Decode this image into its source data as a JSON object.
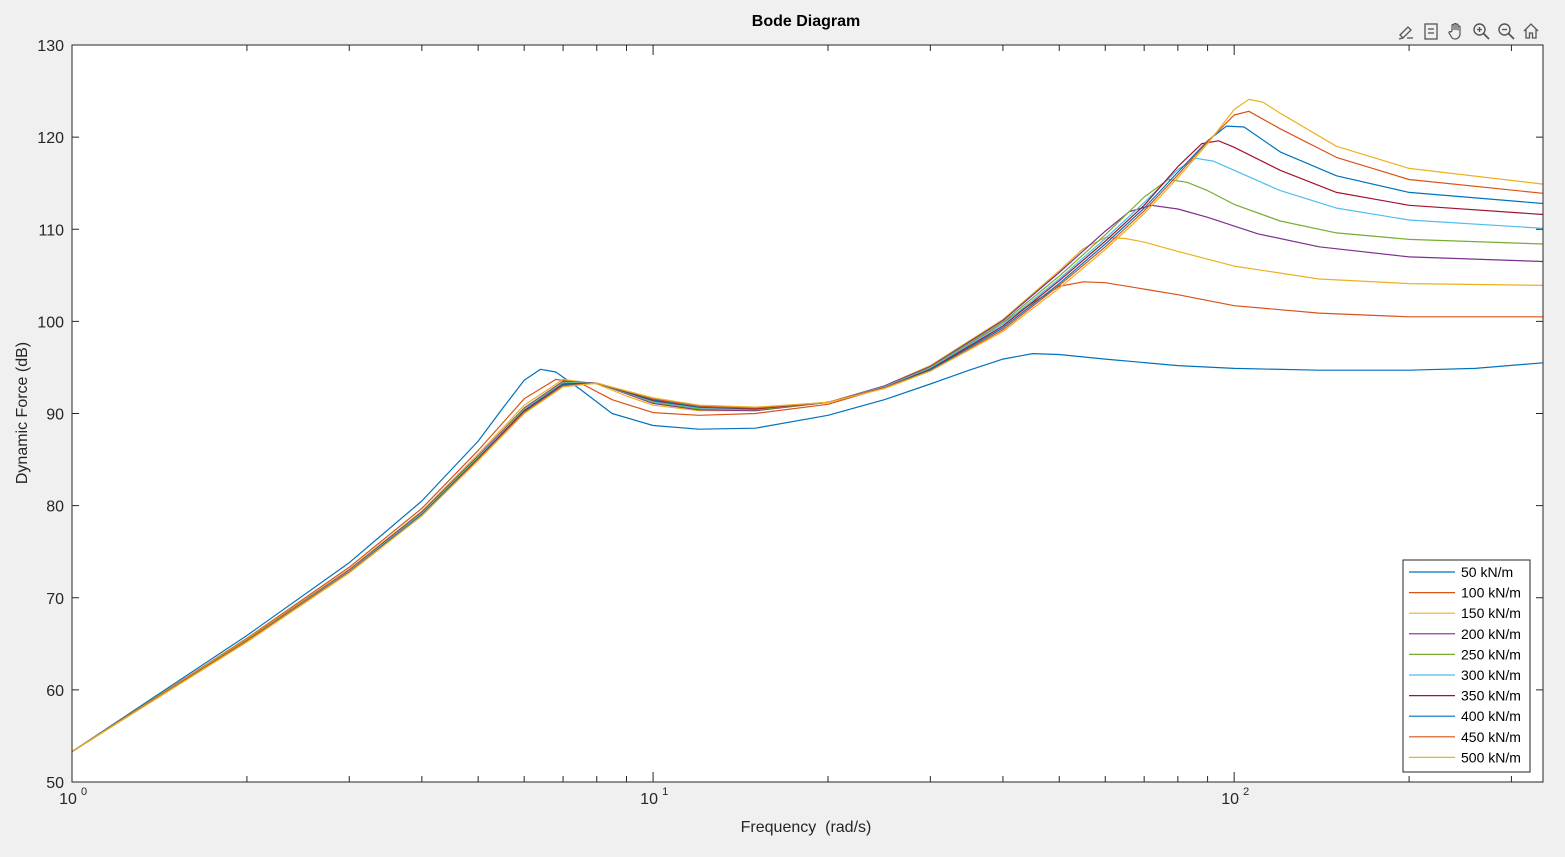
{
  "toolbar": {
    "icons": [
      "brush-icon",
      "legend-icon",
      "pan-hand-icon",
      "zoom-in-icon",
      "zoom-out-icon",
      "home-icon"
    ]
  },
  "chart_data": {
    "type": "line",
    "title": "Bode Diagram",
    "xlabel": "Frequency  (rad/s)",
    "ylabel": "Dynamic Force (dB)",
    "xscale": "log",
    "xlim": [
      1,
      340
    ],
    "ylim": [
      50,
      130
    ],
    "yticks": [
      50,
      60,
      70,
      80,
      90,
      100,
      110,
      120,
      130
    ],
    "xticks_major": [
      {
        "value": 1,
        "base": "10",
        "exp": "0"
      },
      {
        "value": 10,
        "base": "10",
        "exp": "1"
      },
      {
        "value": 100,
        "base": "10",
        "exp": "2"
      }
    ],
    "grid": false,
    "legend_position": "bottom-right",
    "series": [
      {
        "name": "50 kN/m",
        "color": "#0072BD",
        "x": [
          1,
          2,
          3,
          4,
          5,
          5.5,
          6,
          6.4,
          6.8,
          7.5,
          8.5,
          10,
          12,
          15,
          20,
          25,
          30,
          35,
          40,
          45,
          50,
          60,
          80,
          100,
          140,
          200,
          260,
          340
        ],
        "y": [
          53.3,
          65.9,
          73.8,
          80.5,
          87.0,
          90.5,
          93.6,
          94.8,
          94.5,
          92.6,
          90.0,
          88.7,
          88.3,
          88.4,
          89.8,
          91.5,
          93.2,
          94.7,
          95.9,
          96.5,
          96.4,
          95.9,
          95.2,
          94.9,
          94.7,
          94.7,
          94.9,
          95.5
        ]
      },
      {
        "name": "100 kN/m",
        "color": "#D95319",
        "x": [
          1,
          2,
          3,
          4,
          5,
          6,
          6.8,
          7.5,
          8.5,
          10,
          12,
          15,
          20,
          25,
          30,
          35,
          40,
          45,
          50,
          55,
          60,
          70,
          80,
          100,
          140,
          200,
          340
        ],
        "y": [
          53.3,
          65.6,
          73.3,
          79.7,
          86.0,
          91.6,
          93.7,
          93.3,
          91.5,
          90.1,
          89.8,
          90.0,
          91.0,
          92.8,
          95.0,
          97.5,
          99.9,
          102.0,
          103.8,
          104.3,
          104.2,
          103.5,
          102.9,
          101.7,
          100.9,
          100.5,
          100.5
        ]
      },
      {
        "name": "150 kN/m",
        "color": "#EDB120",
        "x": [
          1,
          2,
          3,
          4,
          5,
          6,
          7,
          8,
          9,
          10,
          12,
          15,
          20,
          25,
          30,
          40,
          50,
          55,
          60,
          65,
          70,
          80,
          100,
          140,
          200,
          340
        ],
        "y": [
          53.3,
          65.5,
          73.1,
          79.4,
          85.6,
          90.9,
          93.7,
          93.2,
          91.9,
          90.9,
          90.3,
          90.3,
          91.2,
          93.0,
          95.2,
          100.2,
          105.5,
          107.9,
          109.1,
          109.0,
          108.6,
          107.6,
          106.0,
          104.6,
          104.1,
          103.9
        ]
      },
      {
        "name": "200 kN/m",
        "color": "#7E2F8E",
        "x": [
          1,
          2,
          3,
          4,
          5,
          6,
          7,
          8,
          10,
          12,
          15,
          20,
          25,
          30,
          40,
          50,
          60,
          66,
          72,
          80,
          90,
          110,
          140,
          200,
          340
        ],
        "y": [
          53.3,
          65.4,
          73.0,
          79.3,
          85.4,
          90.6,
          93.5,
          93.3,
          91.1,
          90.4,
          90.3,
          91.2,
          93.0,
          95.1,
          100.1,
          105.3,
          109.8,
          111.9,
          112.6,
          112.2,
          111.3,
          109.5,
          108.1,
          107.0,
          106.5
        ]
      },
      {
        "name": "250 kN/m",
        "color": "#77AC30",
        "x": [
          1,
          2,
          3,
          4,
          5,
          6,
          7,
          8,
          10,
          12,
          15,
          20,
          25,
          30,
          40,
          50,
          60,
          70,
          77,
          83,
          90,
          100,
          120,
          150,
          200,
          340
        ],
        "y": [
          53.3,
          65.4,
          72.9,
          79.2,
          85.3,
          90.5,
          93.4,
          93.3,
          91.2,
          90.5,
          90.4,
          91.2,
          92.9,
          95.0,
          99.9,
          104.9,
          109.4,
          113.5,
          115.4,
          115.1,
          114.2,
          112.7,
          110.9,
          109.6,
          108.9,
          108.4
        ]
      },
      {
        "name": "300 kN/m",
        "color": "#4DBEEE",
        "x": [
          1,
          2,
          3,
          4,
          5,
          6,
          7,
          8,
          10,
          12,
          15,
          20,
          25,
          30,
          40,
          50,
          60,
          70,
          80,
          86,
          92,
          100,
          120,
          150,
          200,
          340
        ],
        "y": [
          53.3,
          65.3,
          72.9,
          79.1,
          85.2,
          90.4,
          93.3,
          93.3,
          91.3,
          90.6,
          90.5,
          91.2,
          92.9,
          94.9,
          99.7,
          104.6,
          109.0,
          112.9,
          116.5,
          117.7,
          117.4,
          116.4,
          114.2,
          112.3,
          111.0,
          110.1
        ]
      },
      {
        "name": "350 kN/m",
        "color": "#A2142F",
        "x": [
          1,
          2,
          3,
          4,
          5,
          6,
          7,
          8,
          10,
          12,
          15,
          20,
          25,
          30,
          40,
          50,
          60,
          70,
          80,
          88,
          94,
          100,
          120,
          150,
          200,
          340
        ],
        "y": [
          53.3,
          65.3,
          72.8,
          79.0,
          85.1,
          90.3,
          93.2,
          93.3,
          91.4,
          90.7,
          90.5,
          91.2,
          92.8,
          94.8,
          99.5,
          104.4,
          108.7,
          112.6,
          116.8,
          119.3,
          119.6,
          118.9,
          116.4,
          114.0,
          112.6,
          111.6
        ]
      },
      {
        "name": "400 kN/m",
        "color": "#0072BD",
        "x": [
          1,
          2,
          3,
          4,
          5,
          6,
          7,
          8,
          10,
          12,
          15,
          20,
          25,
          30,
          40,
          50,
          60,
          70,
          80,
          90,
          97,
          104,
          120,
          150,
          200,
          340
        ],
        "y": [
          53.3,
          65.3,
          72.8,
          79.0,
          85.0,
          90.2,
          93.1,
          93.3,
          91.5,
          90.7,
          90.6,
          91.2,
          92.8,
          94.7,
          99.3,
          104.1,
          108.4,
          112.3,
          116.2,
          119.6,
          121.2,
          121.1,
          118.4,
          115.8,
          114.0,
          112.8
        ]
      },
      {
        "name": "450 kN/m",
        "color": "#D95319",
        "x": [
          1,
          2,
          3,
          4,
          5,
          6,
          7,
          8,
          10,
          12,
          15,
          20,
          25,
          30,
          40,
          50,
          60,
          70,
          80,
          90,
          100,
          106,
          120,
          150,
          200,
          340
        ],
        "y": [
          53.3,
          65.3,
          72.8,
          78.9,
          85.0,
          90.1,
          93.0,
          93.3,
          91.6,
          90.8,
          90.6,
          91.2,
          92.8,
          94.6,
          99.1,
          103.9,
          108.1,
          112.0,
          115.9,
          119.5,
          122.4,
          122.8,
          120.9,
          117.8,
          115.4,
          113.9
        ]
      },
      {
        "name": "500 kN/m",
        "color": "#EDB120",
        "x": [
          1,
          2,
          3,
          4,
          5,
          6,
          7,
          8,
          10,
          12,
          15,
          20,
          25,
          30,
          40,
          50,
          60,
          70,
          80,
          90,
          100,
          106,
          112,
          120,
          150,
          200,
          340
        ],
        "y": [
          53.3,
          65.2,
          72.7,
          78.9,
          84.9,
          90.0,
          92.9,
          93.3,
          91.7,
          90.9,
          90.7,
          91.2,
          92.7,
          94.6,
          98.9,
          103.6,
          107.8,
          111.7,
          115.6,
          119.3,
          123.0,
          124.1,
          123.8,
          122.6,
          119.0,
          116.6,
          114.9
        ]
      }
    ]
  }
}
